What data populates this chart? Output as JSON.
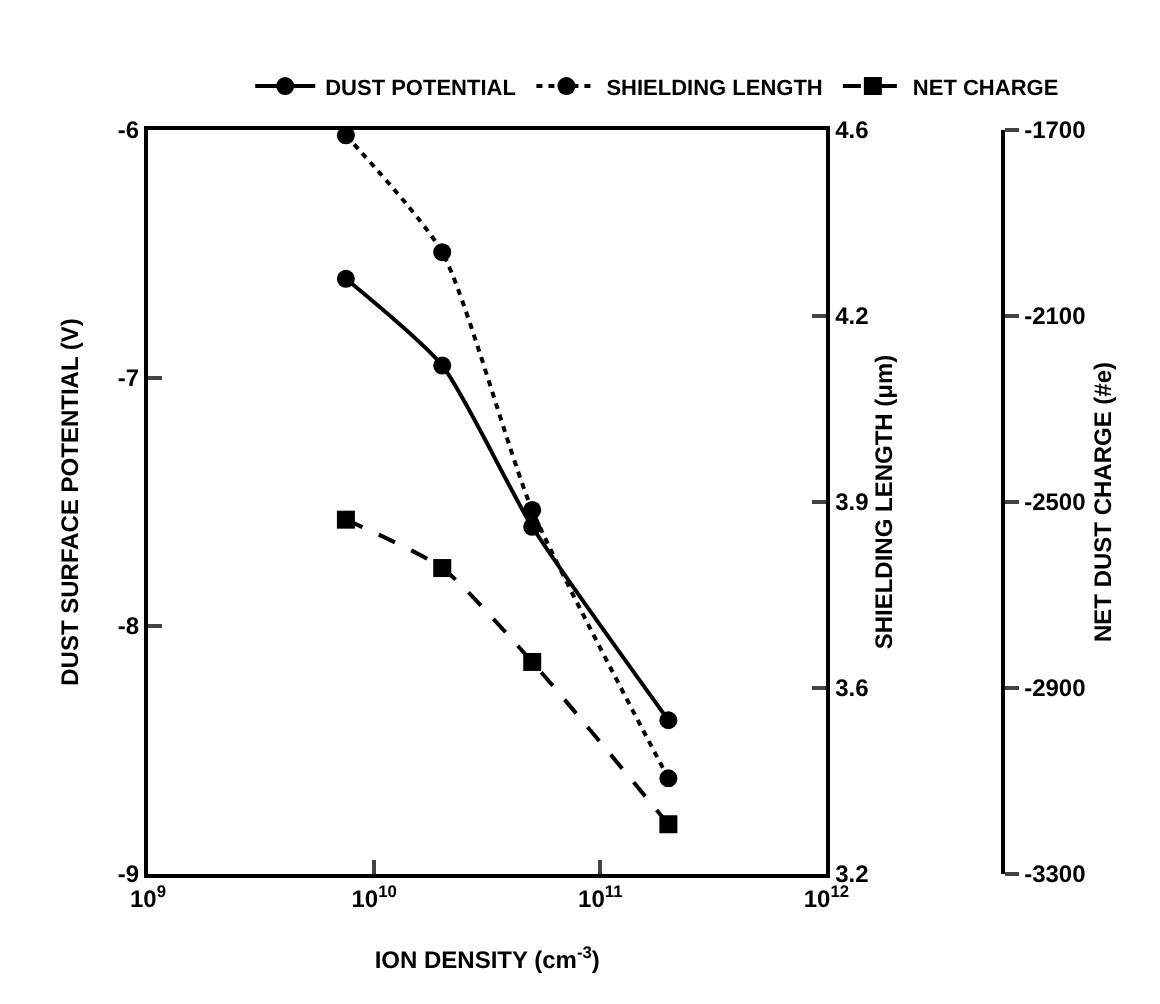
{
  "chart_data": {
    "type": "line",
    "xlabel": "ION DENSITY (cm$^{-3}$)",
    "ylabel": "DUST SURFACE POTENTIAL (V)",
    "y2label": "SHIELDING LENGTH (μm)",
    "y3label": "NET DUST CHARGE (#e)",
    "x": [
      7500000000,
      20000000000,
      50000000000,
      200000000000
    ],
    "log": "x",
    "grid": false,
    "legend": "top",
    "xlim": [
      1000000000,
      1000000000000
    ],
    "xticks": [
      {
        "value": 1000000000,
        "label": "10$^{9}$"
      },
      {
        "value": 10000000000,
        "label": "10$^{10}$"
      },
      {
        "value": 100000000000,
        "label": "10$^{11}$"
      },
      {
        "value": 1000000000000,
        "label": "10$^{12}$"
      }
    ],
    "ylim": [
      -9,
      -6
    ],
    "yticks": [
      -9,
      -8,
      -7,
      -6
    ],
    "y2lim": [
      3.2,
      4.6
    ],
    "y2ticks": [
      3.2,
      {
        "value": 3.55,
        "label": "3.6"
      },
      3.9,
      {
        "value": 4.25,
        "label": "4.2"
      },
      4.6
    ],
    "y3lim": [
      -3300,
      -1700
    ],
    "y3ticks": [
      -3300,
      -2900,
      -2500,
      -2100,
      -1700
    ],
    "series": [
      {
        "name": "DUST POTENTIAL",
        "color": "#000000",
        "values": [
          -6.6,
          -6.95,
          -7.6,
          -8.38
        ],
        "marker": "circle",
        "line_style": "solid"
      },
      {
        "name": "SHIELDING LENGTH",
        "color": "#000000",
        "values": [
          4.59,
          4.37,
          3.885,
          3.38
        ],
        "axis": "y2",
        "marker": "circle",
        "line_style": "dotted"
      },
      {
        "name": "NET CHARGE",
        "color": "#000000",
        "values": [
          -2538,
          -2642,
          -2844,
          -3193
        ],
        "axis": "y3",
        "marker": "square",
        "line_style": "dashed"
      }
    ]
  }
}
